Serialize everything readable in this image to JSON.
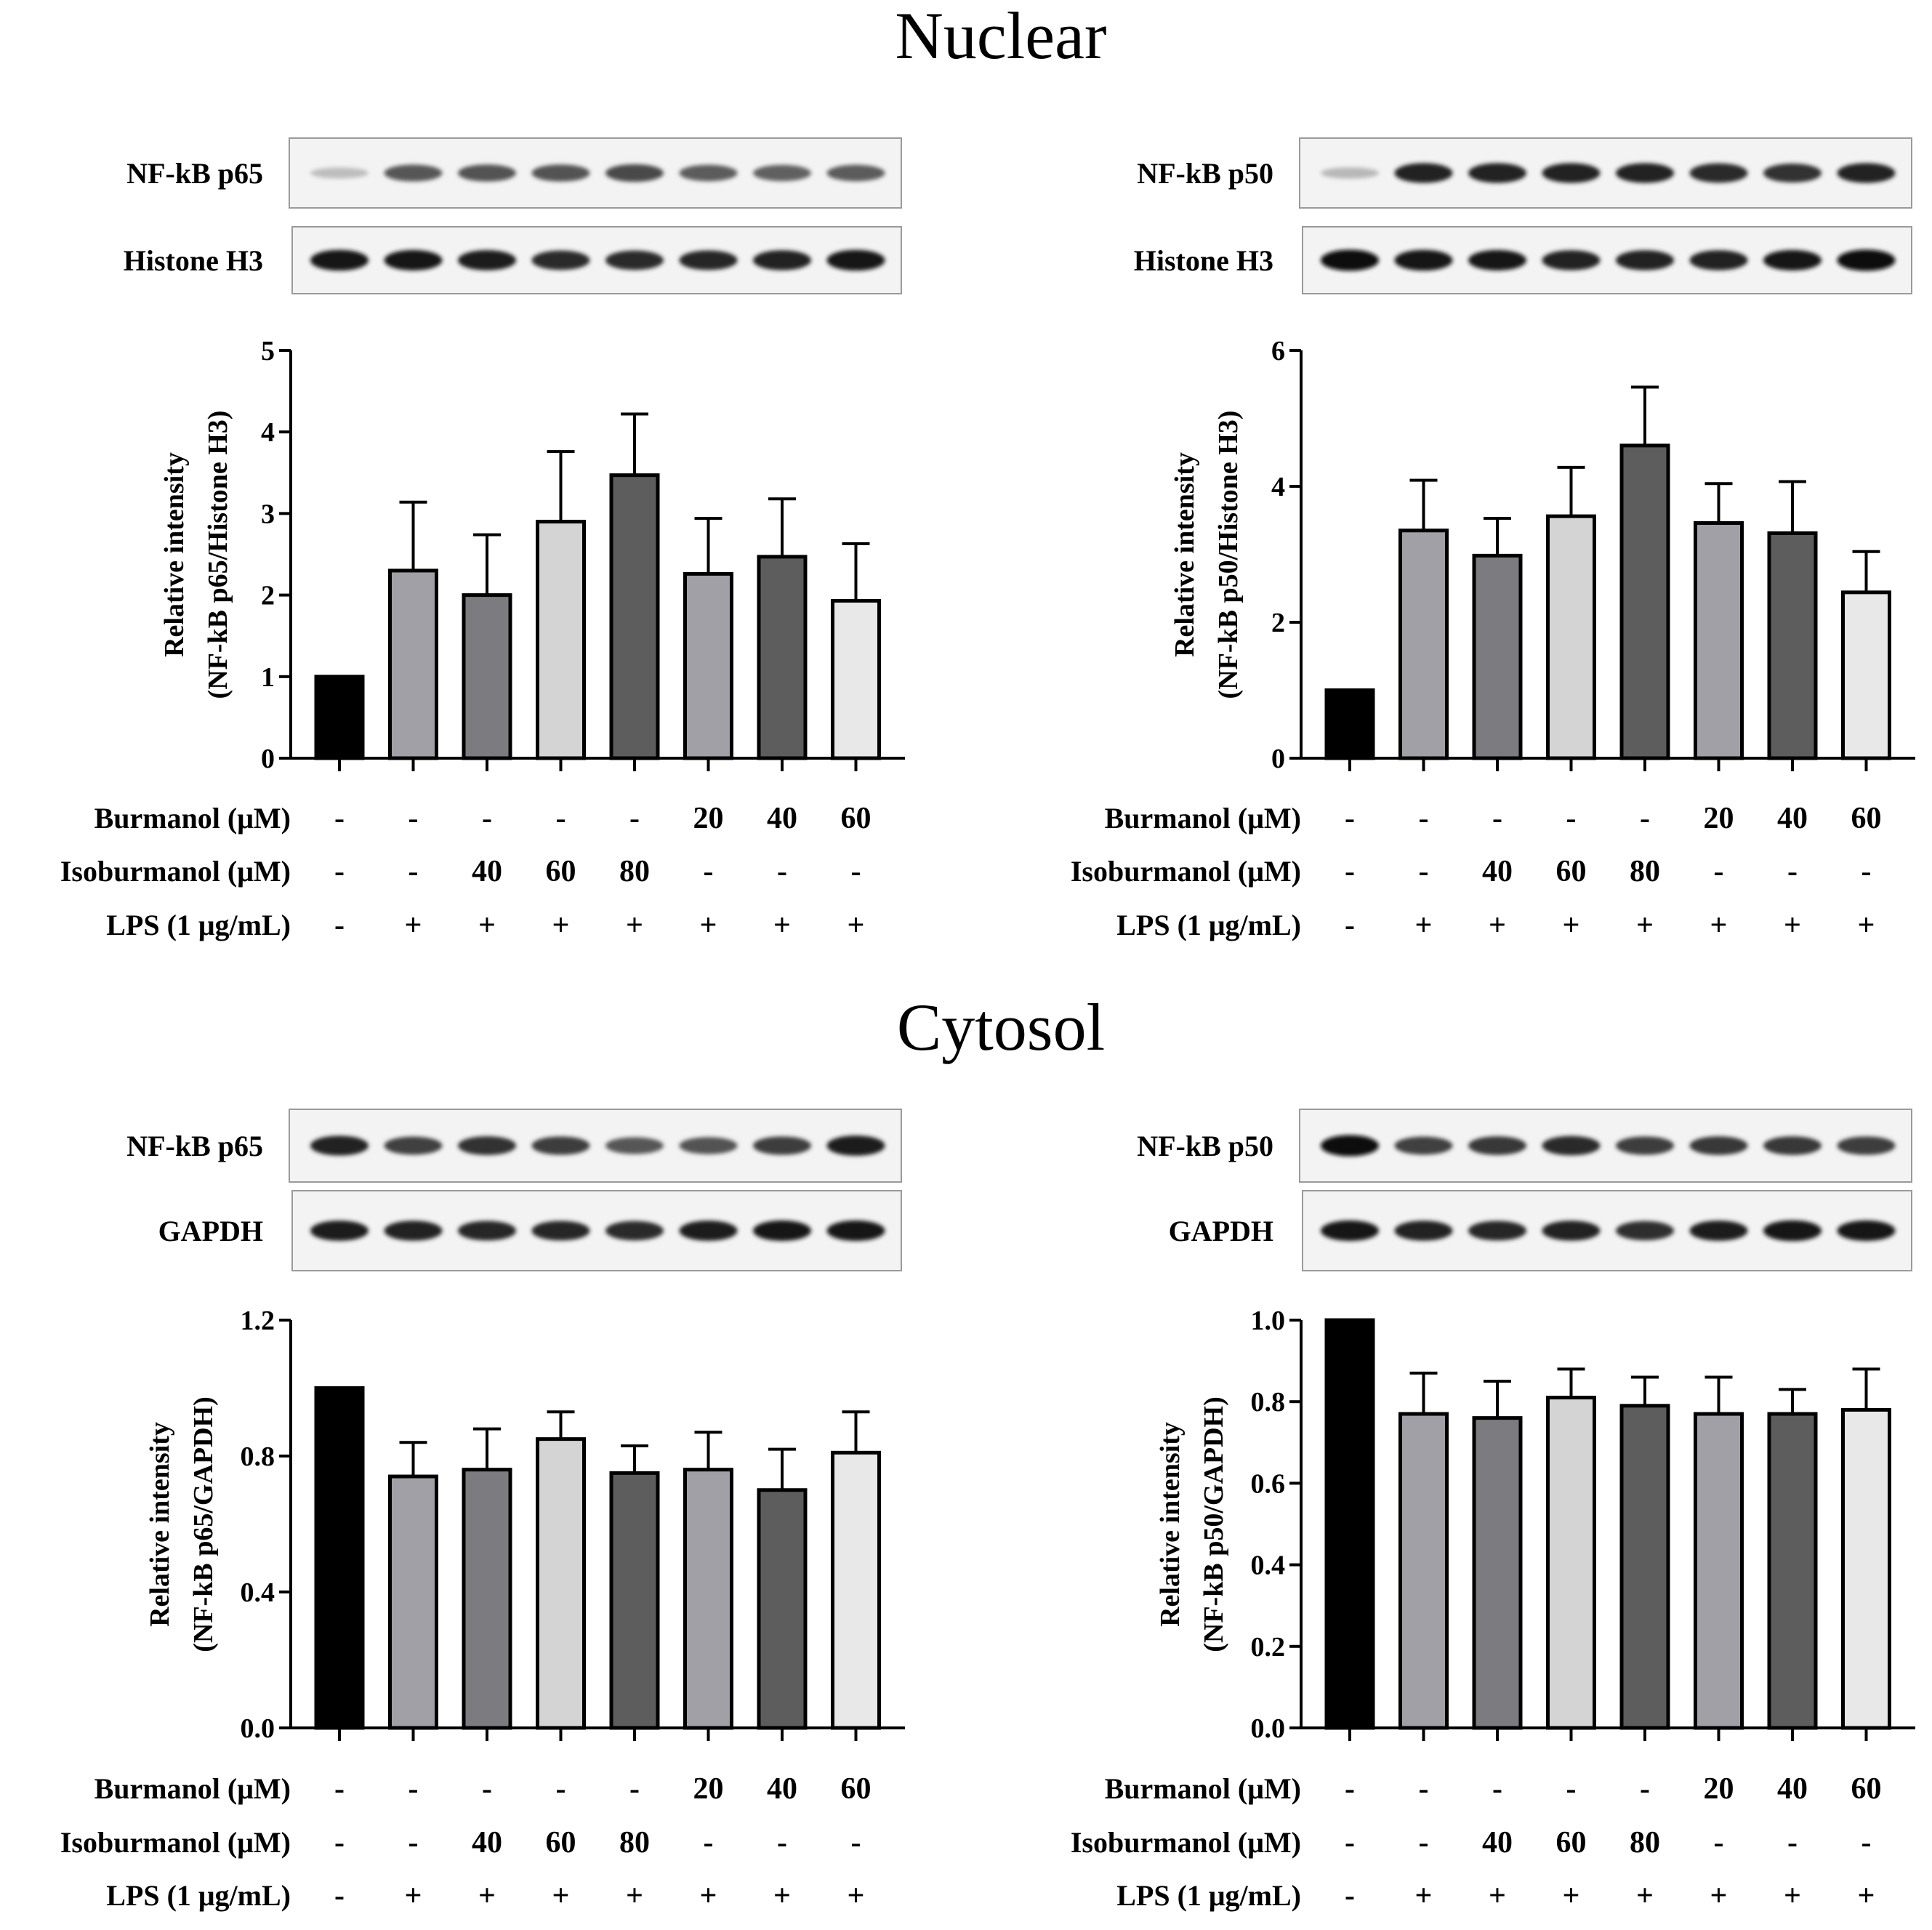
{
  "sections": [
    {
      "id": "nuclear",
      "title": "Nuclear"
    },
    {
      "id": "cytosol",
      "title": "Cytosol"
    }
  ],
  "panels": [
    {
      "id": "nuclear-p65",
      "blots": [
        {
          "label": "NF-kB p65",
          "intensities": [
            0.18,
            0.62,
            0.64,
            0.64,
            0.68,
            0.6,
            0.58,
            0.6
          ]
        },
        {
          "label": "Histone H3",
          "intensities": [
            0.92,
            0.9,
            0.88,
            0.82,
            0.82,
            0.84,
            0.86,
            0.92
          ]
        }
      ],
      "conditions": [
        {
          "label": "Burmanol (μM)",
          "values": [
            "-",
            "-",
            "-",
            "-",
            "-",
            "20",
            "40",
            "60"
          ]
        },
        {
          "label": "Isoburmanol (μM)",
          "values": [
            "-",
            "-",
            "40",
            "60",
            "80",
            "-",
            "-",
            "-"
          ]
        },
        {
          "label": "LPS (1 μg/mL)",
          "values": [
            "-",
            "+",
            "+",
            "+",
            "+",
            "+",
            "+",
            "+"
          ]
        }
      ]
    },
    {
      "id": "nuclear-p50",
      "blots": [
        {
          "label": "NF-kB p50",
          "intensities": [
            0.2,
            0.85,
            0.85,
            0.85,
            0.85,
            0.82,
            0.78,
            0.85
          ]
        },
        {
          "label": "Histone H3",
          "intensities": [
            0.95,
            0.92,
            0.9,
            0.86,
            0.86,
            0.86,
            0.9,
            0.96
          ]
        }
      ],
      "conditions": [
        {
          "label": "Burmanol (μM)",
          "values": [
            "-",
            "-",
            "-",
            "-",
            "-",
            "20",
            "40",
            "60"
          ]
        },
        {
          "label": "Isoburmanol (μM)",
          "values": [
            "-",
            "-",
            "40",
            "60",
            "80",
            "-",
            "-",
            "-"
          ]
        },
        {
          "label": "LPS (1 μg/mL)",
          "values": [
            "-",
            "+",
            "+",
            "+",
            "+",
            "+",
            "+",
            "+"
          ]
        }
      ]
    },
    {
      "id": "cytosol-p65",
      "blots": [
        {
          "label": "NF-kB p65",
          "intensities": [
            0.85,
            0.72,
            0.78,
            0.74,
            0.62,
            0.64,
            0.74,
            0.88
          ]
        },
        {
          "label": "GAPDH",
          "intensities": [
            0.88,
            0.86,
            0.84,
            0.84,
            0.82,
            0.88,
            0.9,
            0.9
          ]
        }
      ],
      "conditions": [
        {
          "label": "Burmanol (μM)",
          "values": [
            "-",
            "-",
            "-",
            "-",
            "-",
            "20",
            "40",
            "60"
          ]
        },
        {
          "label": "Isoburmanol (μM)",
          "values": [
            "-",
            "-",
            "40",
            "60",
            "80",
            "-",
            "-",
            "-"
          ]
        },
        {
          "label": "LPS (1 μg/mL)",
          "values": [
            "-",
            "+",
            "+",
            "+",
            "+",
            "+",
            "+",
            "+"
          ]
        }
      ]
    },
    {
      "id": "cytosol-p50",
      "blots": [
        {
          "label": "NF-kB p50",
          "intensities": [
            0.95,
            0.72,
            0.76,
            0.82,
            0.74,
            0.76,
            0.76,
            0.74
          ]
        },
        {
          "label": "GAPDH",
          "intensities": [
            0.9,
            0.86,
            0.84,
            0.86,
            0.8,
            0.88,
            0.92,
            0.9
          ]
        }
      ],
      "conditions": [
        {
          "label": "Burmanol (μM)",
          "values": [
            "-",
            "-",
            "-",
            "-",
            "-",
            "20",
            "40",
            "60"
          ]
        },
        {
          "label": "Isoburmanol (μM)",
          "values": [
            "-",
            "-",
            "40",
            "60",
            "80",
            "-",
            "-",
            "-"
          ]
        },
        {
          "label": "LPS (1 μg/mL)",
          "values": [
            "-",
            "+",
            "+",
            "+",
            "+",
            "+",
            "+",
            "+"
          ]
        }
      ]
    }
  ],
  "colors": {
    "bar_fills": [
      "#000000",
      "#a0a0a6",
      "#7c7c80",
      "#d4d4d4",
      "#5d5d5d",
      "#a0a0a6",
      "#5d5d5d",
      "#e8e8e8"
    ],
    "axis": "#000000"
  },
  "chart_data": [
    {
      "type": "bar",
      "panel": "nuclear-p65",
      "ylabel": [
        "Relative intensity",
        "(NF-kB p65/Histone H3)"
      ],
      "ylim": [
        0,
        5
      ],
      "yticks": [
        0,
        1,
        2,
        3,
        4,
        5
      ],
      "ytick_labels": [
        "0",
        "1",
        "2",
        "3",
        "4",
        "5"
      ],
      "values": [
        1.0,
        2.3,
        2.0,
        2.9,
        3.47,
        2.26,
        2.47,
        1.93
      ],
      "errors": [
        0,
        0.84,
        0.74,
        0.86,
        0.75,
        0.68,
        0.71,
        0.7
      ]
    },
    {
      "type": "bar",
      "panel": "nuclear-p50",
      "ylabel": [
        "Relative intensity",
        "(NF-kB p50/Histone H3)"
      ],
      "ylim": [
        0,
        6
      ],
      "yticks": [
        0,
        2,
        4,
        6
      ],
      "ytick_labels": [
        "0",
        "2",
        "4",
        "6"
      ],
      "values": [
        1.0,
        3.35,
        2.98,
        3.56,
        4.6,
        3.46,
        3.31,
        2.44
      ],
      "errors": [
        0,
        0.74,
        0.55,
        0.72,
        0.86,
        0.58,
        0.76,
        0.6
      ]
    },
    {
      "type": "bar",
      "panel": "cytosol-p65",
      "ylabel": [
        "Relative intensity",
        "(NF-kB p65/GAPDH)"
      ],
      "ylim": [
        0,
        1.2
      ],
      "yticks": [
        0,
        0.4,
        0.8,
        1.2
      ],
      "ytick_labels": [
        "0.0",
        "0.4",
        "0.8",
        "1.2"
      ],
      "values": [
        1.0,
        0.74,
        0.76,
        0.85,
        0.75,
        0.76,
        0.7,
        0.81
      ],
      "errors": [
        0,
        0.1,
        0.12,
        0.08,
        0.08,
        0.11,
        0.12,
        0.12
      ]
    },
    {
      "type": "bar",
      "panel": "cytosol-p50",
      "ylabel": [
        "Relative intensity",
        "(NF-kB p50/GAPDH)"
      ],
      "ylim": [
        0,
        1.0
      ],
      "yticks": [
        0,
        0.2,
        0.4,
        0.6,
        0.8,
        1.0
      ],
      "ytick_labels": [
        "0.0",
        "0.2",
        "0.4",
        "0.6",
        "0.8",
        "1.0"
      ],
      "values": [
        1.0,
        0.77,
        0.76,
        0.81,
        0.79,
        0.77,
        0.77,
        0.78
      ],
      "errors": [
        0,
        0.1,
        0.09,
        0.07,
        0.07,
        0.09,
        0.06,
        0.1
      ]
    }
  ]
}
